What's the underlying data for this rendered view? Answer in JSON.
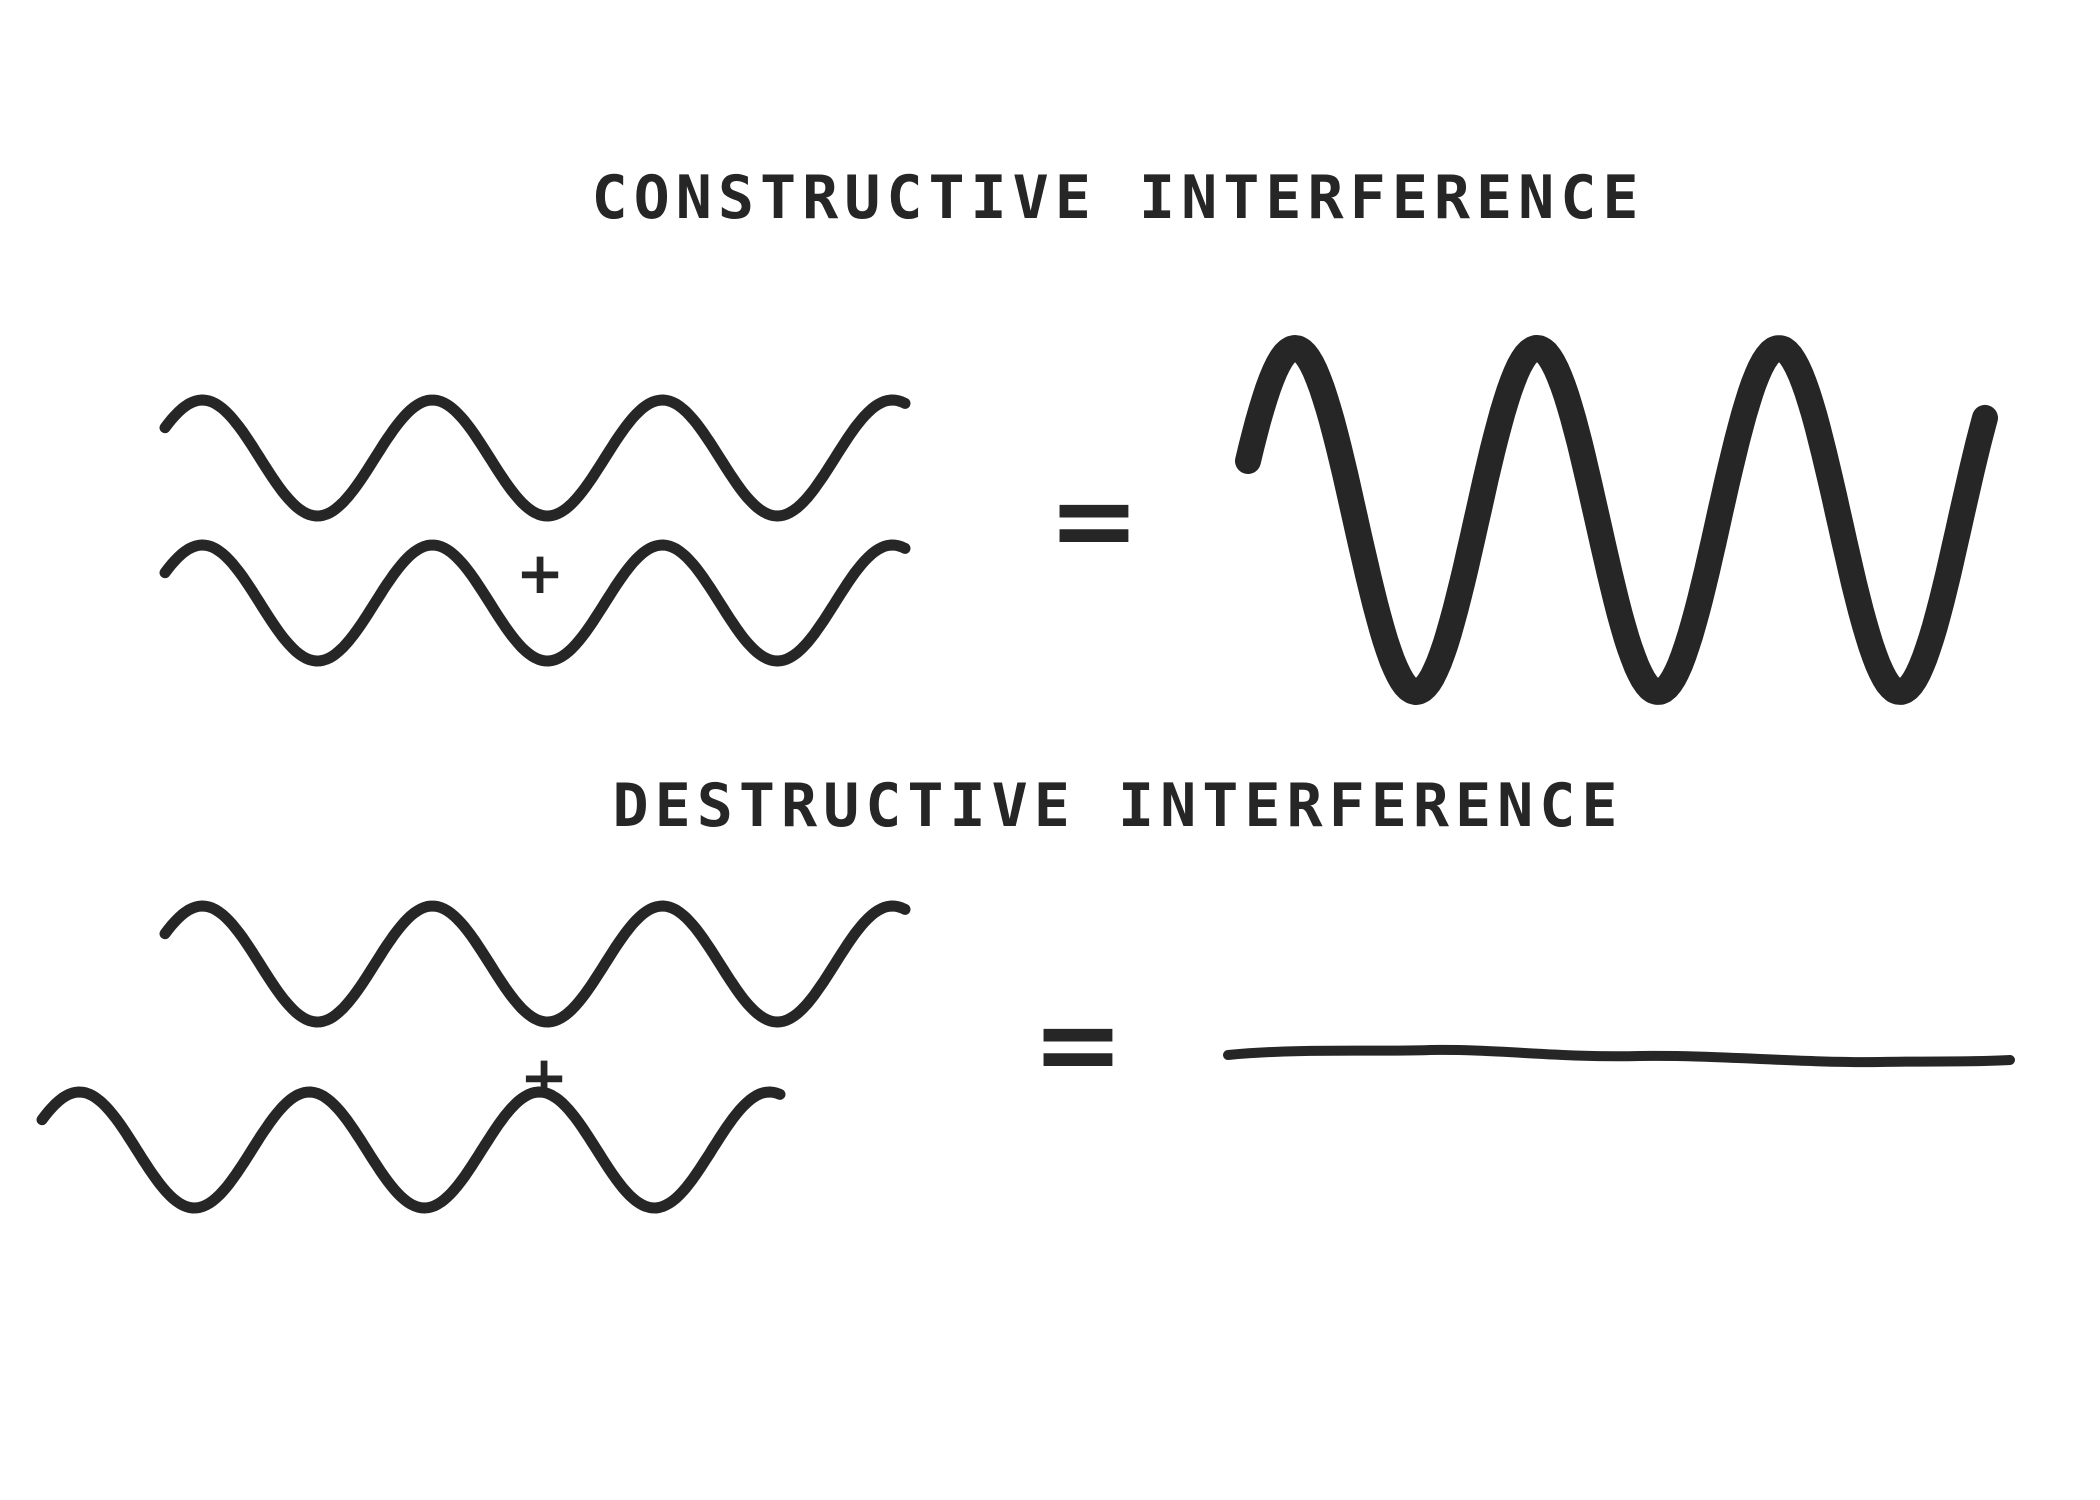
{
  "sections": {
    "constructive": {
      "title": "CONSTRUCTIVE INTERFERENCE",
      "plus": "+",
      "equals": "="
    },
    "destructive": {
      "title": "DESTRUCTIVE INTERFERENCE",
      "plus": "+",
      "equals": "="
    }
  },
  "colors": {
    "ink": "#262626",
    "background": "#ffffff"
  }
}
